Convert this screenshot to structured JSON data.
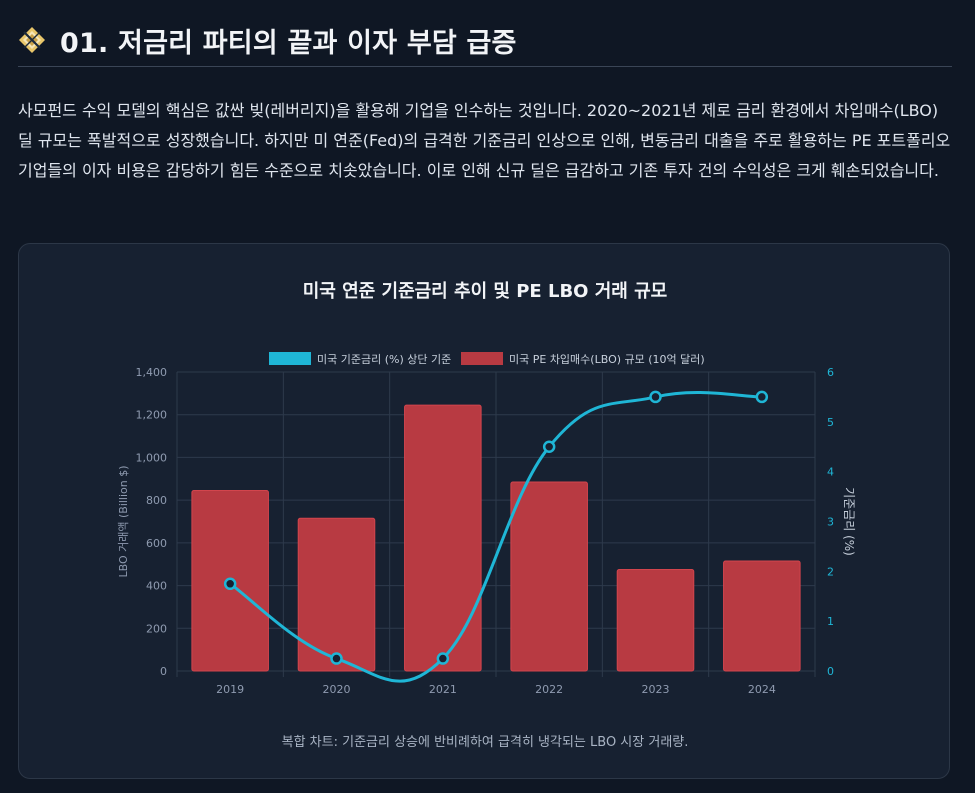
{
  "header": {
    "title": "01. 저금리 파티의 끝과 이자 부담 급증",
    "icon": "compass-diamond-icon"
  },
  "intro": "사모펀드 수익 모델의 핵심은 값싼 빚(레버리지)을 활용해 기업을 인수하는 것입니다. 2020~2021년 제로 금리 환경에서 차입매수(LBO) 딜 규모는 폭발적으로 성장했습니다. 하지만 미 연준(Fed)의 급격한 기준금리 인상으로 인해, 변동금리 대출을 주로 활용하는 PE 포트폴리오 기업들의 이자 비용은 감당하기 힘든 수준으로 치솟았습니다. 이로 인해 신규 딜은 급감하고 기존 투자 건의 수익성은 크게 훼손되었습니다.",
  "colors": {
    "rate_line": "#1fb6d6",
    "bar_fill": "#b83a42",
    "background": "#0f1724",
    "card": "#172131"
  },
  "chart_data": {
    "type": "bar",
    "title": "미국 연준 기준금리 추이 및 PE LBO 거래 규모",
    "caption": "복합 차트: 기준금리 상승에 반비례하여 급격히 냉각되는 LBO 시장 거래량.",
    "categories": [
      "2019",
      "2020",
      "2021",
      "2022",
      "2023",
      "2024"
    ],
    "series": [
      {
        "name": "미국 기준금리 (%) 상단 기준",
        "type": "line",
        "axis": "right",
        "values": [
          1.75,
          0.25,
          0.25,
          4.5,
          5.5,
          5.5
        ]
      },
      {
        "name": "미국 PE 차입매수(LBO) 규모 (10억 달러)",
        "type": "bar",
        "axis": "left",
        "values": [
          845,
          715,
          1245,
          885,
          475,
          515
        ]
      }
    ],
    "ylabel": "LBO 거래액 (Billion $)",
    "ylabel_right": "기준금리 (%)",
    "ylim": [
      0,
      1400
    ],
    "ylim_right": [
      0,
      6
    ],
    "yticks": [
      "0",
      "200",
      "400",
      "600",
      "800",
      "1,000",
      "1,200",
      "1,400"
    ],
    "yticks_right": [
      "0",
      "1",
      "2",
      "3",
      "4",
      "5",
      "6"
    ],
    "legend_position": "top",
    "grid": true
  }
}
